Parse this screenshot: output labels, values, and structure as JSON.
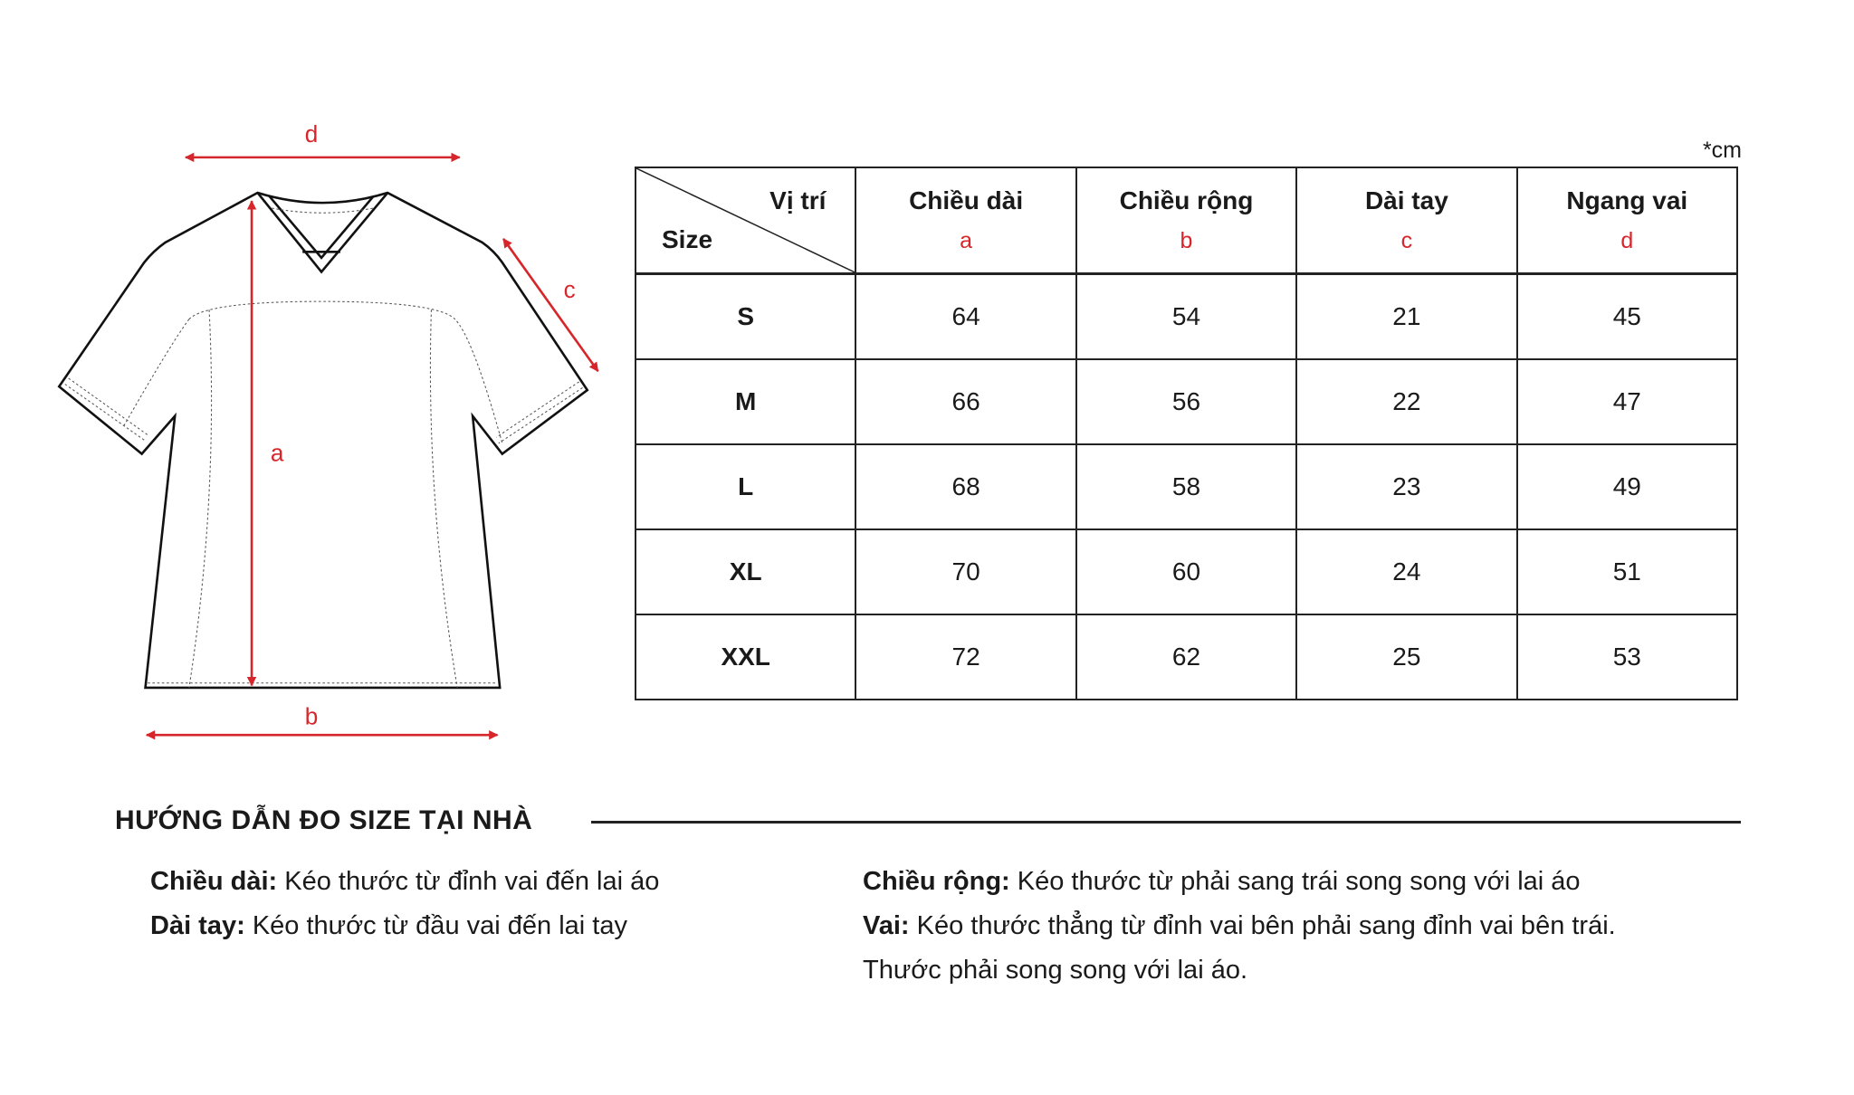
{
  "diagram": {
    "labels": {
      "a": "a",
      "b": "b",
      "c": "c",
      "d": "d"
    },
    "arrow_color": "#d7262b"
  },
  "unit": "*cm",
  "table": {
    "corner_top": "Vị trí",
    "corner_bottom": "Size",
    "columns": [
      {
        "title": "Chiều dài",
        "key": "a"
      },
      {
        "title": "Chiều rộng",
        "key": "b"
      },
      {
        "title": "Dài tay",
        "key": "c"
      },
      {
        "title": "Ngang vai",
        "key": "d"
      }
    ],
    "rows": [
      {
        "size": "S",
        "values": [
          "64",
          "54",
          "21",
          "45"
        ]
      },
      {
        "size": "M",
        "values": [
          "66",
          "56",
          "22",
          "47"
        ]
      },
      {
        "size": "L",
        "values": [
          "68",
          "58",
          "23",
          "49"
        ]
      },
      {
        "size": "XL",
        "values": [
          "70",
          "60",
          "24",
          "51"
        ]
      },
      {
        "size": "XXL",
        "values": [
          "72",
          "62",
          "25",
          "53"
        ]
      }
    ]
  },
  "guide": {
    "title": "HƯỚNG DẪN ĐO SIZE TẠI NHÀ",
    "items": [
      {
        "label": "Chiều dài:",
        "text": " Kéo thước từ đỉnh vai đến lai áo"
      },
      {
        "label": "Dài tay:",
        "text": " Kéo thước từ đầu vai đến lai tay"
      },
      {
        "label": "Chiều rộng:",
        "text": " Kéo thước từ phải sang trái song song với lai áo"
      },
      {
        "label": "Vai:",
        "text": " Kéo thước thẳng từ đỉnh vai bên phải sang đỉnh vai bên trái."
      },
      {
        "label": "",
        "text": "Thước phải song song với lai áo."
      }
    ]
  }
}
